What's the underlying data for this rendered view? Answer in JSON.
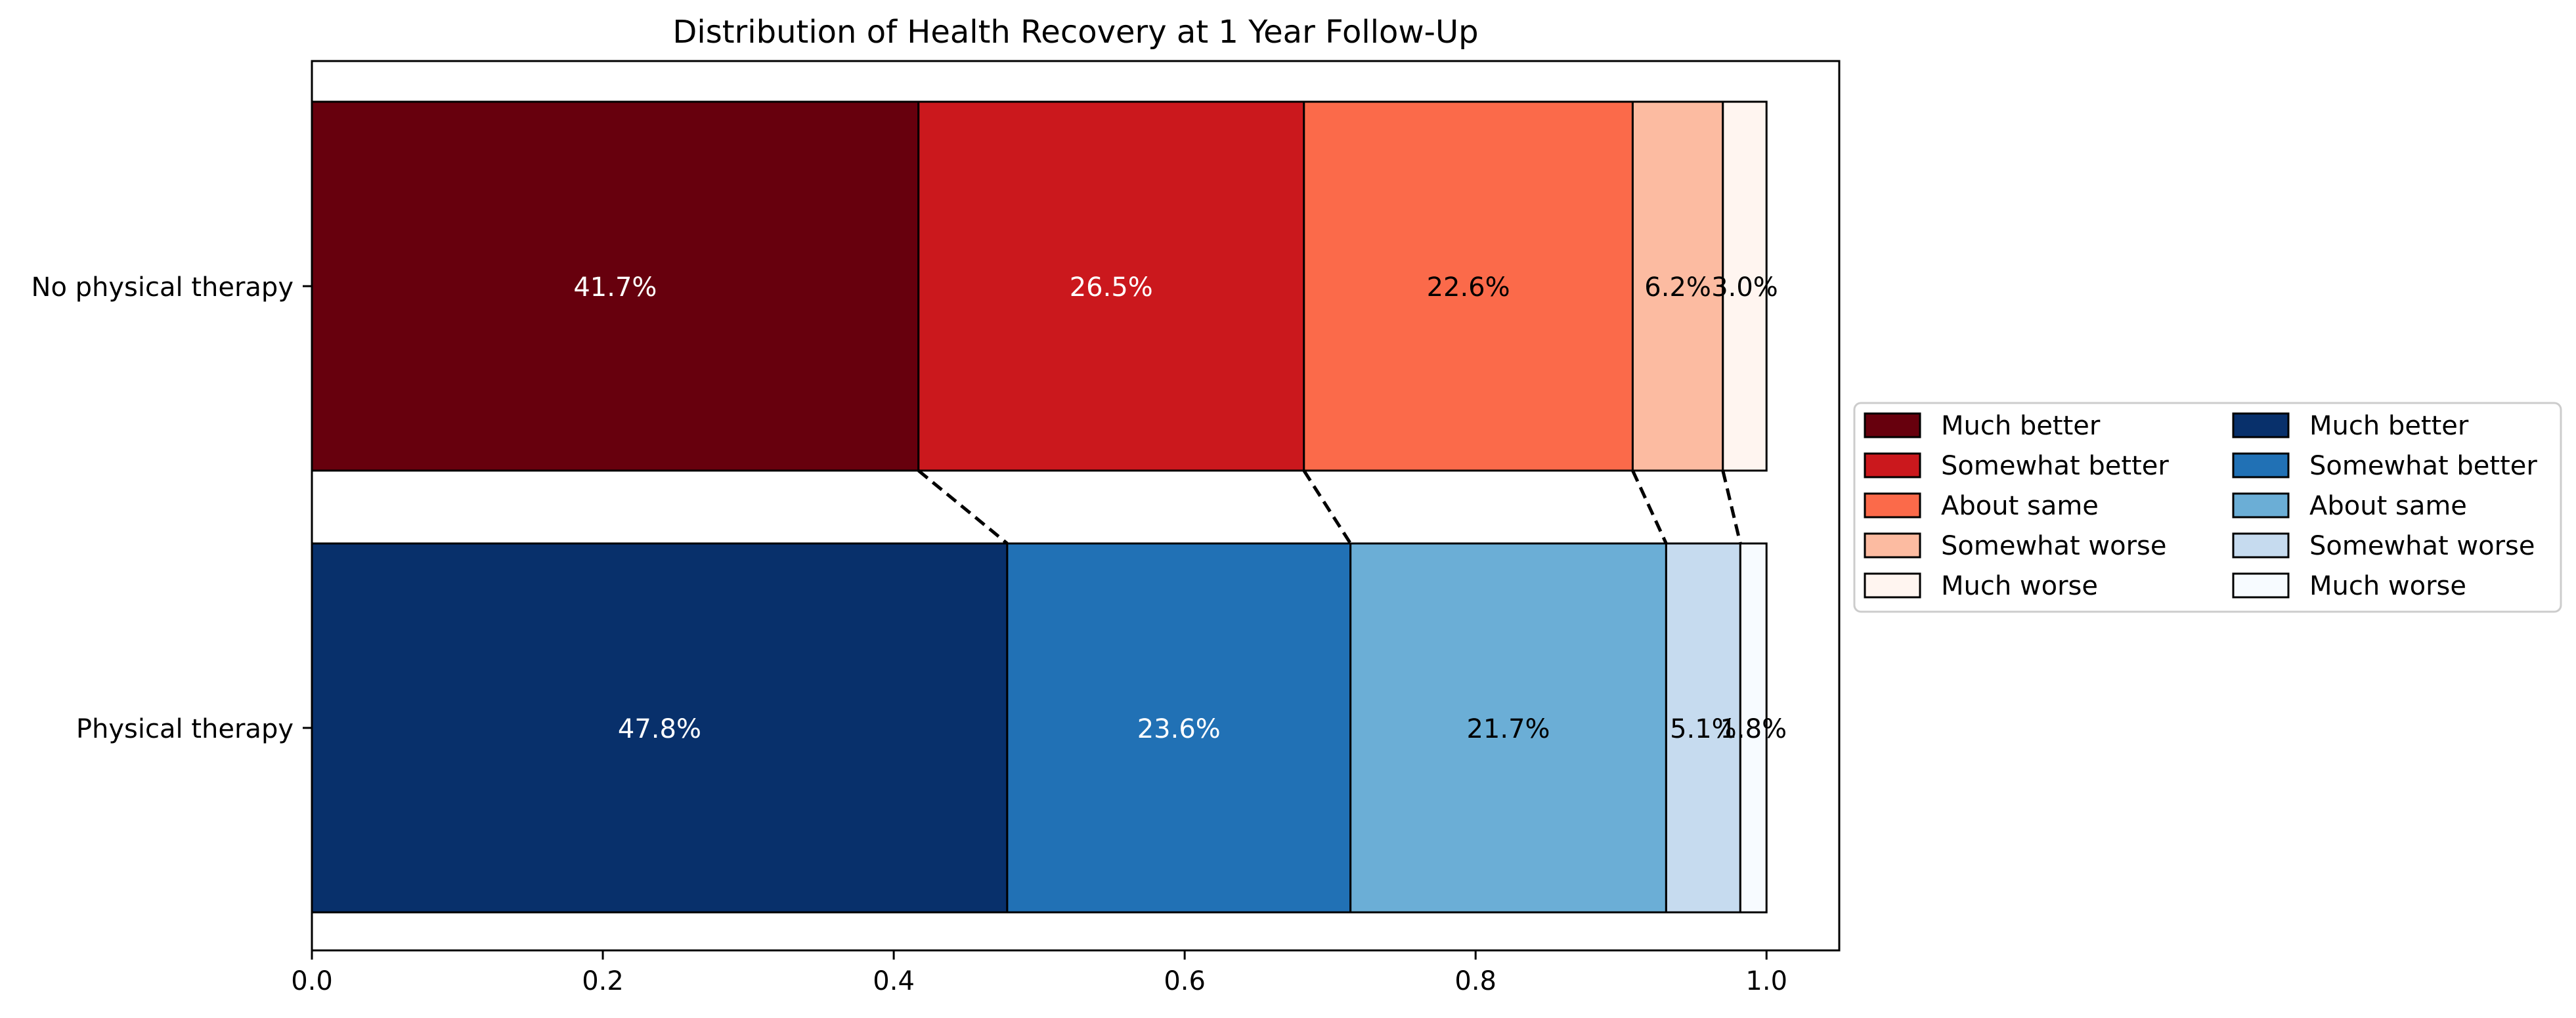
{
  "chart_data": {
    "type": "bar",
    "orientation": "horizontal",
    "stacked": true,
    "title": "Distribution of Health Recovery at 1 Year Follow-Up",
    "xlabel": "",
    "ylabel": "",
    "xlim": [
      0.0,
      1.05
    ],
    "x_ticks": [
      "0.0",
      "0.2",
      "0.4",
      "0.6",
      "0.8",
      "1.0"
    ],
    "grid": false,
    "legend_position": "right",
    "categories": [
      "No physical therapy",
      "Physical therapy"
    ],
    "series": [
      {
        "name": "Much better",
        "values": [
          0.417,
          0.478
        ],
        "labels": [
          "41.7%",
          "47.8%"
        ],
        "colors": [
          "#67000d",
          "#08306b"
        ],
        "label_colors": [
          "#ffffff",
          "#ffffff"
        ]
      },
      {
        "name": "Somewhat better",
        "values": [
          0.265,
          0.236
        ],
        "labels": [
          "26.5%",
          "23.6%"
        ],
        "colors": [
          "#cb181d",
          "#2171b5"
        ],
        "label_colors": [
          "#ffffff",
          "#ffffff"
        ]
      },
      {
        "name": "About same",
        "values": [
          0.226,
          0.217
        ],
        "labels": [
          "22.6%",
          "21.7%"
        ],
        "colors": [
          "#fb6a4a",
          "#6baed6"
        ],
        "label_colors": [
          "#000000",
          "#000000"
        ]
      },
      {
        "name": "Somewhat worse",
        "values": [
          0.062,
          0.051
        ],
        "labels": [
          "6.2%",
          "5.1%"
        ],
        "colors": [
          "#fcbba1",
          "#c6dbef"
        ],
        "label_colors": [
          "#000000",
          "#000000"
        ]
      },
      {
        "name": "Much worse",
        "values": [
          0.03,
          0.018
        ],
        "labels": [
          "3.0%",
          "1.8%"
        ],
        "colors": [
          "#fff5f0",
          "#f7fbff"
        ],
        "label_colors": [
          "#000000",
          "#000000"
        ]
      }
    ],
    "legend": {
      "columns": [
        {
          "entries": [
            {
              "name": "Much better",
              "color": "#67000d"
            },
            {
              "name": "Somewhat better",
              "color": "#cb181d"
            },
            {
              "name": "About same",
              "color": "#fb6a4a"
            },
            {
              "name": "Somewhat worse",
              "color": "#fcbba1"
            },
            {
              "name": "Much worse",
              "color": "#fff5f0"
            }
          ]
        },
        {
          "entries": [
            {
              "name": "Much better",
              "color": "#08306b"
            },
            {
              "name": "Somewhat better",
              "color": "#2171b5"
            },
            {
              "name": "About same",
              "color": "#6baed6"
            },
            {
              "name": "Somewhat worse",
              "color": "#c6dbef"
            },
            {
              "name": "Much worse",
              "color": "#f7fbff"
            }
          ]
        }
      ]
    },
    "connectors": "dashed"
  }
}
